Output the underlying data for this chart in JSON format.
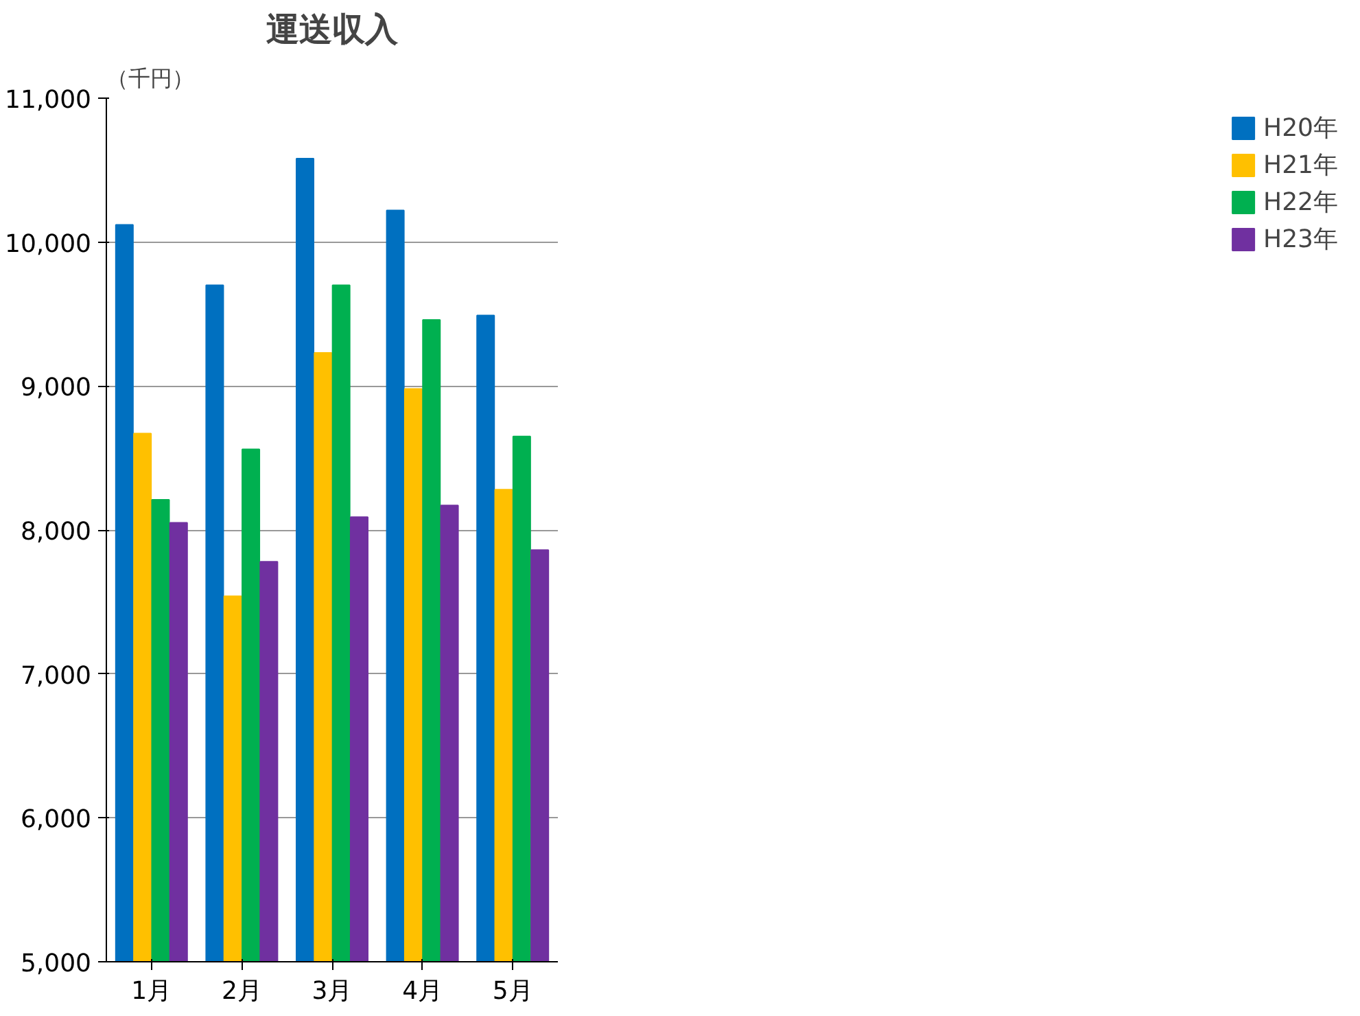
{
  "chart_data": {
    "type": "bar",
    "title": "運送収入",
    "ylabel": "（千円）",
    "categories": [
      "1月",
      "2月",
      "3月",
      "4月",
      "5月"
    ],
    "series": [
      {
        "name": "H20年",
        "color": "#0070c0",
        "values": [
          10120,
          9700,
          10580,
          10220,
          9490
        ]
      },
      {
        "name": "H21年",
        "color": "#ffc000",
        "values": [
          8670,
          7540,
          9230,
          8980,
          8280
        ]
      },
      {
        "name": "H22年",
        "color": "#00b050",
        "values": [
          8210,
          8560,
          9700,
          9460,
          8650
        ]
      },
      {
        "name": "H23年",
        "color": "#7030a0",
        "values": [
          8050,
          7780,
          8090,
          8170,
          7860
        ]
      }
    ],
    "ylim": [
      5000,
      11000
    ],
    "yticks": [
      {
        "value": 5000,
        "label": "5,000"
      },
      {
        "value": 6000,
        "label": "6,000"
      },
      {
        "value": 7000,
        "label": "7,000"
      },
      {
        "value": 8000,
        "label": "8,000"
      },
      {
        "value": 9000,
        "label": "9,000"
      },
      {
        "value": 10000,
        "label": "10,000"
      },
      {
        "value": 11000,
        "label": "11,000"
      }
    ],
    "grid": "y",
    "legend": "right"
  }
}
